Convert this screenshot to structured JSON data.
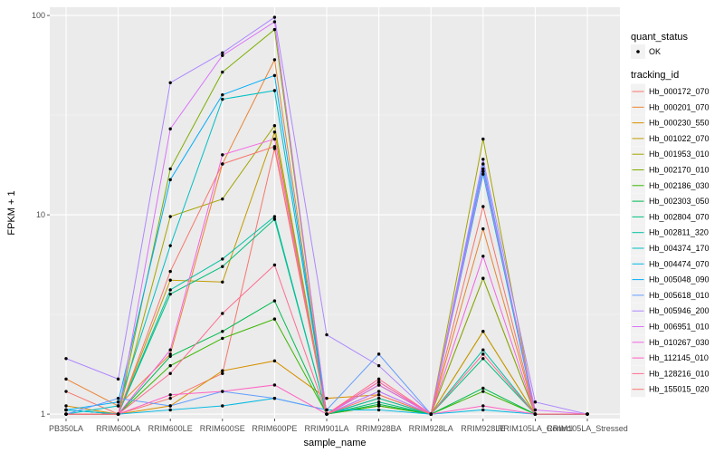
{
  "chart_data": {
    "type": "line",
    "xlabel": "sample_name",
    "ylabel": "FPKM + 1",
    "yscale": "log10",
    "ylim": [
      0.95,
      110
    ],
    "grid": true,
    "legend_position": "right",
    "y_ticks": [
      1,
      10,
      100
    ],
    "y_tick_labels": [
      "1",
      "10",
      "100"
    ],
    "categories": [
      "PB350LA",
      "RRIM600LA",
      "RRIM600LE",
      "RRIM600SE",
      "RRIM600PE",
      "RRIM901LA",
      "RRIM928BA",
      "RRIM928LA",
      "RRIM928LE",
      "RRIM105LA_Control",
      "RRIM105LA_Stressed"
    ],
    "category_labels": [
      "PB350LA",
      "RRIM600LA",
      "RRIM600LE",
      "RRIM600SE",
      "RRIM600PE",
      "RRIM901LA",
      "RRIM928BA",
      "RRIM928LA",
      "RRIM928LE",
      "RRIM105LA_Control",
      "RRIM105LA_Stressed"
    ],
    "point_legend": {
      "title": "quant_status",
      "entries": [
        "OK"
      ]
    },
    "line_legend_title": "tracking_id",
    "series": [
      {
        "name": "Hb_000172_070",
        "color": "#F8766D",
        "values": [
          1.3,
          1.0,
          1.2,
          1.6,
          21.5,
          1.0,
          1.1,
          1.0,
          4.8,
          1.0,
          1.0
        ]
      },
      {
        "name": "Hb_000201_070",
        "color": "#EA8331",
        "values": [
          1.5,
          1.1,
          2.0,
          18.0,
          60.0,
          1.0,
          1.2,
          1.0,
          8.5,
          1.0,
          1.0
        ]
      },
      {
        "name": "Hb_000230_550",
        "color": "#D89000",
        "values": [
          1.1,
          1.0,
          1.1,
          1.65,
          1.85,
          1.2,
          1.25,
          1.0,
          2.6,
          1.0,
          1.0
        ]
      },
      {
        "name": "Hb_001022_070",
        "color": "#C09B00",
        "values": [
          1.0,
          1.0,
          4.7,
          4.6,
          26.0,
          1.0,
          1.45,
          1.0,
          2.6,
          1.0,
          1.0
        ]
      },
      {
        "name": "Hb_001953_010",
        "color": "#A3A500",
        "values": [
          1.0,
          1.0,
          9.8,
          12.0,
          28.0,
          1.0,
          1.4,
          1.0,
          24.0,
          1.0,
          1.0
        ]
      },
      {
        "name": "Hb_002170_010",
        "color": "#7CAE00",
        "values": [
          1.0,
          1.0,
          17.0,
          52.0,
          85.0,
          1.0,
          1.1,
          1.0,
          4.8,
          1.0,
          1.0
        ]
      },
      {
        "name": "Hb_002186_030",
        "color": "#39B600",
        "values": [
          1.0,
          1.0,
          1.75,
          2.4,
          3.0,
          1.0,
          1.1,
          1.0,
          1.3,
          1.0,
          1.0
        ]
      },
      {
        "name": "Hb_002303_050",
        "color": "#00BB4E",
        "values": [
          1.05,
          1.0,
          1.95,
          2.6,
          3.7,
          1.0,
          1.12,
          1.0,
          1.35,
          1.0,
          1.0
        ]
      },
      {
        "name": "Hb_002804_070",
        "color": "#00BF7D",
        "values": [
          1.05,
          1.0,
          4.0,
          5.5,
          9.5,
          1.0,
          1.15,
          1.0,
          1.9,
          1.0,
          1.0
        ]
      },
      {
        "name": "Hb_002811_320",
        "color": "#00C1A3",
        "values": [
          1.05,
          1.0,
          4.2,
          6.0,
          9.8,
          1.0,
          1.2,
          1.0,
          2.1,
          1.0,
          1.0
        ]
      },
      {
        "name": "Hb_004374_170",
        "color": "#00BFC4",
        "values": [
          1.0,
          1.1,
          7.0,
          38.0,
          42.0,
          1.0,
          1.4,
          1.0,
          16.0,
          1.0,
          1.0
        ]
      },
      {
        "name": "Hb_004474_070",
        "color": "#00B9E3",
        "values": [
          1.05,
          1.0,
          1.05,
          1.1,
          1.2,
          1.05,
          1.05,
          1.0,
          1.05,
          1.0,
          1.0
        ]
      },
      {
        "name": "Hb_005048_090",
        "color": "#00ADFA",
        "values": [
          1.05,
          1.15,
          15.0,
          40.0,
          50.0,
          1.0,
          1.3,
          1.0,
          17.0,
          1.0,
          1.0
        ]
      },
      {
        "name": "Hb_005618_010",
        "color": "#619CFF",
        "values": [
          1.0,
          1.2,
          1.1,
          1.3,
          1.2,
          1.05,
          2.0,
          1.0,
          18.0,
          1.0,
          1.0
        ]
      },
      {
        "name": "Hb_005946_200",
        "color": "#AE87FF",
        "values": [
          1.9,
          1.5,
          46.0,
          65.0,
          98.0,
          2.5,
          1.75,
          1.0,
          19.0,
          1.15,
          1.0
        ]
      },
      {
        "name": "Hb_006951_010",
        "color": "#DB72FB",
        "values": [
          1.0,
          1.0,
          27.0,
          63.0,
          93.0,
          1.0,
          1.3,
          1.0,
          16.5,
          1.05,
          1.0
        ]
      },
      {
        "name": "Hb_010267_030",
        "color": "#F564E3",
        "values": [
          1.0,
          1.0,
          2.1,
          20.0,
          24.0,
          1.0,
          1.4,
          1.0,
          6.2,
          1.0,
          1.0
        ]
      },
      {
        "name": "Hb_112145_010",
        "color": "#FF61C3",
        "values": [
          1.0,
          1.0,
          1.25,
          1.3,
          1.4,
          1.0,
          1.45,
          1.0,
          1.1,
          1.0,
          1.0
        ]
      },
      {
        "name": "Hb_128216_010",
        "color": "#FF6C91",
        "values": [
          1.0,
          1.0,
          1.6,
          3.2,
          5.6,
          1.0,
          1.5,
          1.0,
          2.0,
          1.0,
          1.0
        ]
      },
      {
        "name": "Hb_155015_020",
        "color": "#F8766D",
        "values": [
          1.0,
          1.0,
          5.2,
          18.0,
          22.0,
          1.0,
          1.25,
          1.0,
          11.0,
          1.0,
          1.0
        ]
      }
    ]
  }
}
